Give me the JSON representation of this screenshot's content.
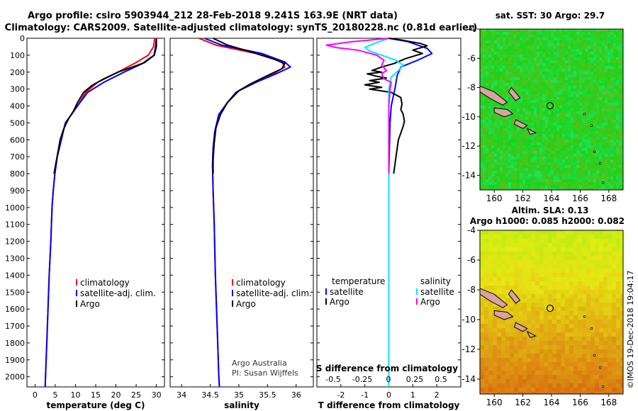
{
  "header": {
    "line1": "Argo profile: csiro 5903944_212 28-Feb-2018 9.241S 163.9E (NRT data)",
    "line2": "Climatology: CARS2009. Satellite-adjusted climatology: synTS_20180228.nc (0.81d earlier)"
  },
  "colors": {
    "climatology": "#ff0000",
    "satellite": "#0000ff",
    "argo": "#000000",
    "sat_salinity": "#00e5ff",
    "clim_salinity": "#ff00ff"
  },
  "chart_data": [
    {
      "type": "line",
      "name": "temperature-profile",
      "xlabel": "temperature (deg C)",
      "ylabel": "",
      "xlim": [
        -2,
        32
      ],
      "ylim": [
        2060,
        0
      ],
      "xticks": [
        0,
        5,
        10,
        15,
        20,
        25,
        30
      ],
      "yticks": [
        0,
        100,
        200,
        300,
        400,
        500,
        600,
        700,
        800,
        900,
        1000,
        1100,
        1200,
        1300,
        1400,
        1500,
        1600,
        1700,
        1800,
        1900,
        2000
      ],
      "legend": [
        "climatology",
        "satellite-adj. clim.",
        "Argo"
      ],
      "legend_position": "lower-right",
      "series": [
        {
          "name": "climatology",
          "color": "#ff0000",
          "points": [
            [
              29.6,
              0
            ],
            [
              29.3,
              50
            ],
            [
              28,
              100
            ],
            [
              24.5,
              150
            ],
            [
              20.5,
              200
            ],
            [
              15.5,
              260
            ],
            [
              12.5,
              320
            ],
            [
              10.5,
              400
            ],
            [
              9,
              450
            ],
            [
              7.5,
              500
            ],
            [
              6.5,
              600
            ],
            [
              5.5,
              700
            ],
            [
              4.9,
              800
            ],
            [
              4.5,
              900
            ],
            [
              4.2,
              1000
            ],
            [
              3.9,
              1200
            ],
            [
              3.5,
              1400
            ],
            [
              3.2,
              1600
            ],
            [
              2.9,
              1800
            ],
            [
              2.6,
              2000
            ],
            [
              2.5,
              2060
            ]
          ]
        },
        {
          "name": "satellite-adj. clim.",
          "color": "#0000ff",
          "points": [
            [
              30,
              0
            ],
            [
              29.8,
              50
            ],
            [
              29.4,
              100
            ],
            [
              26.5,
              150
            ],
            [
              22,
              200
            ],
            [
              17,
              260
            ],
            [
              13,
              320
            ],
            [
              10.5,
              400
            ],
            [
              9,
              450
            ],
            [
              7.5,
              500
            ],
            [
              6.5,
              600
            ],
            [
              5.5,
              700
            ],
            [
              4.9,
              800
            ],
            [
              4.5,
              900
            ],
            [
              4.2,
              1000
            ],
            [
              3.9,
              1200
            ],
            [
              3.5,
              1400
            ],
            [
              3.2,
              1600
            ],
            [
              2.9,
              1800
            ],
            [
              2.6,
              2000
            ],
            [
              2.5,
              2060
            ]
          ]
        },
        {
          "name": "Argo",
          "color": "#000000",
          "points": [
            [
              30,
              5
            ],
            [
              30,
              50
            ],
            [
              29.5,
              100
            ],
            [
              27,
              145
            ],
            [
              23.5,
              175
            ],
            [
              20.5,
              200
            ],
            [
              17,
              240
            ],
            [
              14,
              280
            ],
            [
              12,
              320
            ],
            [
              10.5,
              380
            ],
            [
              9.5,
              430
            ],
            [
              8.2,
              480
            ],
            [
              7,
              540
            ],
            [
              6.2,
              600
            ],
            [
              5.6,
              680
            ],
            [
              5,
              760
            ],
            [
              4.7,
              800
            ]
          ]
        }
      ]
    },
    {
      "type": "line",
      "name": "salinity-profile",
      "xlabel": "salinity",
      "xlim": [
        33.8,
        36.3
      ],
      "ylim": [
        2060,
        0
      ],
      "xticks": [
        34,
        34.5,
        35,
        35.5,
        36
      ],
      "legend": [
        "climatology",
        "satellite-adj. clim.",
        "Argo"
      ],
      "legend_position": "lower-right",
      "annotations": [
        "Argo Australia",
        "PI: Susan Wijffels"
      ],
      "series": [
        {
          "name": "climatology",
          "color": "#ff0000",
          "points": [
            [
              34.3,
              0
            ],
            [
              34.6,
              40
            ],
            [
              35.3,
              90
            ],
            [
              35.75,
              140
            ],
            [
              35.8,
              170
            ],
            [
              35.6,
              210
            ],
            [
              35.3,
              260
            ],
            [
              35.0,
              310
            ],
            [
              34.8,
              380
            ],
            [
              34.65,
              450
            ],
            [
              34.58,
              550
            ],
            [
              34.55,
              650
            ],
            [
              34.54,
              750
            ],
            [
              34.55,
              900
            ],
            [
              34.57,
              1100
            ],
            [
              34.59,
              1400
            ],
            [
              34.62,
              1700
            ],
            [
              34.65,
              2000
            ],
            [
              34.66,
              2060
            ]
          ]
        },
        {
          "name": "satellite-adj. clim.",
          "color": "#0000ff",
          "points": [
            [
              34.4,
              0
            ],
            [
              34.7,
              40
            ],
            [
              35.4,
              90
            ],
            [
              35.8,
              140
            ],
            [
              35.9,
              170
            ],
            [
              35.65,
              210
            ],
            [
              35.3,
              260
            ],
            [
              35.0,
              310
            ],
            [
              34.8,
              380
            ],
            [
              34.65,
              450
            ],
            [
              34.58,
              550
            ],
            [
              34.55,
              650
            ],
            [
              34.54,
              750
            ],
            [
              34.55,
              900
            ],
            [
              34.57,
              1100
            ],
            [
              34.59,
              1400
            ],
            [
              34.62,
              1700
            ],
            [
              34.65,
              2000
            ],
            [
              34.66,
              2060
            ]
          ]
        },
        {
          "name": "Argo",
          "color": "#000000",
          "points": [
            [
              34.55,
              0
            ],
            [
              34.8,
              40
            ],
            [
              35.2,
              80
            ],
            [
              35.6,
              120
            ],
            [
              35.8,
              150
            ],
            [
              35.75,
              180
            ],
            [
              35.5,
              220
            ],
            [
              35.2,
              270
            ],
            [
              34.95,
              320
            ],
            [
              34.8,
              380
            ],
            [
              34.68,
              450
            ],
            [
              34.6,
              530
            ],
            [
              34.57,
              620
            ],
            [
              34.55,
              720
            ],
            [
              34.55,
              800
            ]
          ]
        }
      ]
    },
    {
      "type": "line",
      "name": "difference-profile",
      "xlabel": "T difference from climatology",
      "xlabel2": "S difference from climatology",
      "xlim": [
        -3,
        3
      ],
      "ylim": [
        2060,
        0
      ],
      "xticks": [
        -2,
        -1,
        0,
        1,
        2
      ],
      "xticklabels": [
        "-2",
        "-1",
        "0",
        "1",
        "2"
      ],
      "xticks_s": [
        "-0.5",
        "-0.25",
        "0",
        "0.25",
        "0.5"
      ],
      "legend_left_title": "temperature",
      "legend_right_title": "salinity",
      "legend": [
        "satellite",
        "Argo",
        "satellite",
        "Argo"
      ],
      "series": [
        {
          "name": "T satellite",
          "color": "#0000ff",
          "points": [
            [
              0,
              0
            ],
            [
              0.8,
              20
            ],
            [
              1.6,
              60
            ],
            [
              1.8,
              90
            ],
            [
              1.2,
              130
            ],
            [
              0.5,
              170
            ],
            [
              0.35,
              220
            ],
            [
              0.25,
              300
            ],
            [
              0.1,
              400
            ],
            [
              0.05,
              500
            ],
            [
              0,
              800
            ],
            [
              0,
              2060
            ]
          ]
        },
        {
          "name": "T Argo",
          "color": "#000000",
          "points": [
            [
              0,
              0
            ],
            [
              0.5,
              10
            ],
            [
              1.3,
              30
            ],
            [
              1.6,
              45
            ],
            [
              1.0,
              70
            ],
            [
              1.4,
              90
            ],
            [
              0.7,
              120
            ],
            [
              0.2,
              150
            ],
            [
              -0.3,
              170
            ],
            [
              -0.7,
              190
            ],
            [
              -0.3,
              200
            ],
            [
              -0.9,
              210
            ],
            [
              -0.5,
              225
            ],
            [
              -0.1,
              235
            ],
            [
              -0.8,
              250
            ],
            [
              -0.4,
              260
            ],
            [
              -1.0,
              275
            ],
            [
              -0.3,
              290
            ],
            [
              -0.8,
              300
            ],
            [
              0.1,
              320
            ],
            [
              0.5,
              350
            ],
            [
              0.55,
              390
            ],
            [
              0.5,
              420
            ],
            [
              0.6,
              450
            ],
            [
              0.65,
              490
            ],
            [
              0.6,
              520
            ],
            [
              0.5,
              560
            ],
            [
              0.4,
              600
            ],
            [
              0.35,
              650
            ],
            [
              0.3,
              700
            ],
            [
              0.25,
              750
            ],
            [
              0.2,
              800
            ]
          ]
        },
        {
          "name": "S satellite",
          "color": "#00e5ff",
          "points": [
            [
              0,
              0
            ],
            [
              -0.6,
              30
            ],
            [
              -1.0,
              55
            ],
            [
              -0.8,
              75
            ],
            [
              -0.3,
              100
            ],
            [
              0.3,
              130
            ],
            [
              0.6,
              160
            ],
            [
              0.4,
              190
            ],
            [
              0.1,
              230
            ],
            [
              0,
              300
            ],
            [
              0,
              400
            ],
            [
              0,
              2060
            ]
          ]
        },
        {
          "name": "S Argo",
          "color": "#ff00ff",
          "points": [
            [
              0,
              0
            ],
            [
              -1.5,
              20
            ],
            [
              -2.6,
              40
            ],
            [
              -2.2,
              55
            ],
            [
              -1.3,
              70
            ],
            [
              -0.5,
              100
            ],
            [
              -0.2,
              130
            ],
            [
              -0.3,
              160
            ],
            [
              -0.1,
              190
            ],
            [
              -0.3,
              210
            ],
            [
              -0.2,
              240
            ],
            [
              0.1,
              260
            ],
            [
              0.05,
              300
            ],
            [
              0,
              400
            ],
            [
              0,
              800
            ]
          ]
        }
      ]
    },
    {
      "type": "heatmap",
      "name": "sst-map",
      "title": "sat. SST: 30 Argo: 29.7",
      "xlim": [
        159,
        169
      ],
      "ylim": [
        -15,
        -4
      ],
      "xticks": [
        160,
        162,
        164,
        166,
        168
      ],
      "yticks": [
        -4,
        -6,
        -8,
        -10,
        -12,
        -14
      ],
      "marker": [
        163.9,
        -9.241
      ]
    },
    {
      "type": "heatmap",
      "name": "sla-map",
      "title": "Altim. SLA: 0.13",
      "subtitle": "Argo h1000: 0.085 h2000: 0.082",
      "xlim": [
        159,
        169
      ],
      "ylim": [
        -15,
        -4
      ],
      "xticks": [
        160,
        162,
        164,
        166,
        168
      ],
      "yticks": [
        -4,
        -6,
        -8,
        -10,
        -12,
        -14
      ],
      "marker": [
        163.9,
        -9.241
      ]
    }
  ],
  "footer": {
    "credit": "©IMOS 19-Dec-2018 19:04:17"
  }
}
